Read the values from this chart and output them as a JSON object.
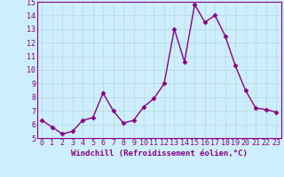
{
  "x": [
    0,
    1,
    2,
    3,
    4,
    5,
    6,
    7,
    8,
    9,
    10,
    11,
    12,
    13,
    14,
    15,
    16,
    17,
    18,
    19,
    20,
    21,
    22,
    23
  ],
  "y": [
    6.3,
    5.8,
    5.3,
    5.5,
    6.3,
    6.5,
    8.3,
    7.0,
    6.1,
    6.3,
    7.3,
    7.9,
    9.0,
    13.0,
    10.6,
    14.8,
    13.5,
    14.0,
    12.5,
    10.3,
    8.5,
    7.2,
    7.1,
    6.9
  ],
  "line_color": "#880088",
  "marker": "D",
  "markersize": 2.5,
  "linewidth": 1.0,
  "bg_color": "#cceeff",
  "grid_color": "#bbdddd",
  "xlabel": "Windchill (Refroidissement éolien,°C)",
  "ylim": [
    5,
    15
  ],
  "xlim_min": -0.5,
  "xlim_max": 23.5,
  "yticks": [
    5,
    6,
    7,
    8,
    9,
    10,
    11,
    12,
    13,
    14,
    15
  ],
  "xticks": [
    0,
    1,
    2,
    3,
    4,
    5,
    6,
    7,
    8,
    9,
    10,
    11,
    12,
    13,
    14,
    15,
    16,
    17,
    18,
    19,
    20,
    21,
    22,
    23
  ],
  "label_fontsize": 6.5,
  "tick_fontsize": 6.0
}
